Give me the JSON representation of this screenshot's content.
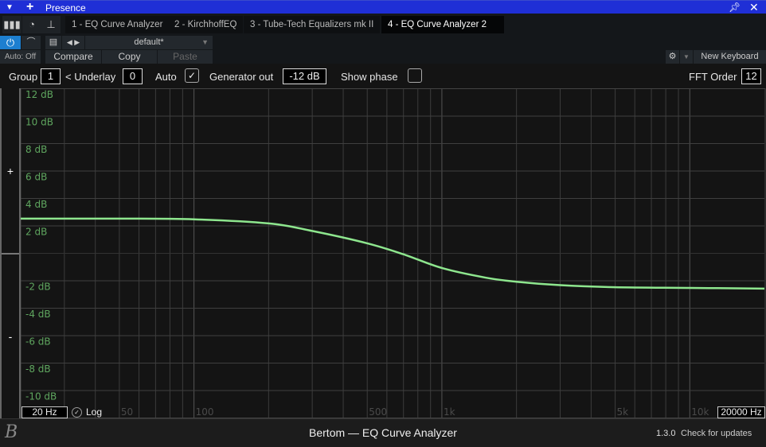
{
  "window": {
    "title": "Presence"
  },
  "tabs": [
    {
      "label": "1 - EQ Curve Analyzer"
    },
    {
      "label": "2 - KirchhoffEQ"
    },
    {
      "label": "3 - Tube-Tech Equalizers mk II"
    },
    {
      "label": "4 - EQ Curve Analyzer 2",
      "active": true
    }
  ],
  "preset": {
    "name": "default*",
    "auto": "Auto: Off",
    "compare": "Compare",
    "copy": "Copy",
    "paste": "Paste",
    "keyboard": "New Keyboard"
  },
  "toolbar": {
    "group_label": "Group",
    "group_value": "1",
    "underlay_label": "< Underlay",
    "underlay_value": "0",
    "auto_label": "Auto",
    "auto_checked": true,
    "generator_label": "Generator out",
    "generator_value": "-12 dB",
    "phase_label": "Show phase",
    "phase_checked": false,
    "fft_label": "FFT Order",
    "fft_value": "12"
  },
  "side": {
    "plus": "+",
    "minus": "-"
  },
  "freq": {
    "min": "20 Hz",
    "max": "20000 Hz",
    "log_label": "Log",
    "log_checked": true
  },
  "footer": {
    "title": "Bertom — EQ Curve Analyzer",
    "version": "1.3.0",
    "updates": "Check for updates"
  },
  "chart_data": {
    "type": "line",
    "x_scale": "log",
    "xlim": [
      20,
      20000
    ],
    "ylim": [
      -12,
      12
    ],
    "grid": true,
    "x_tick_labels": [
      "50",
      "100",
      "500",
      "1k",
      "5k",
      "10k"
    ],
    "x_ticks": [
      50,
      100,
      500,
      1000,
      5000,
      10000
    ],
    "y_tick_labels": [
      "12 dB",
      "10 dB",
      "8 dB",
      "6 dB",
      "4 dB",
      "2 dB",
      "-2 dB",
      "-4 dB",
      "-6 dB",
      "-8 dB",
      "-10 dB"
    ],
    "y_ticks": [
      12,
      10,
      8,
      6,
      4,
      2,
      -2,
      -4,
      -6,
      -8,
      -10
    ],
    "curve_color": "#8ee68e",
    "series": [
      {
        "x": [
          20,
          50,
          100,
          200,
          300,
          500,
          700,
          1000,
          1500,
          2000,
          3000,
          5000,
          10000,
          20000
        ],
        "y": [
          2.5,
          2.5,
          2.45,
          2.15,
          1.6,
          0.7,
          -0.1,
          -1.1,
          -1.8,
          -2.1,
          -2.35,
          -2.5,
          -2.55,
          -2.6
        ]
      }
    ]
  }
}
